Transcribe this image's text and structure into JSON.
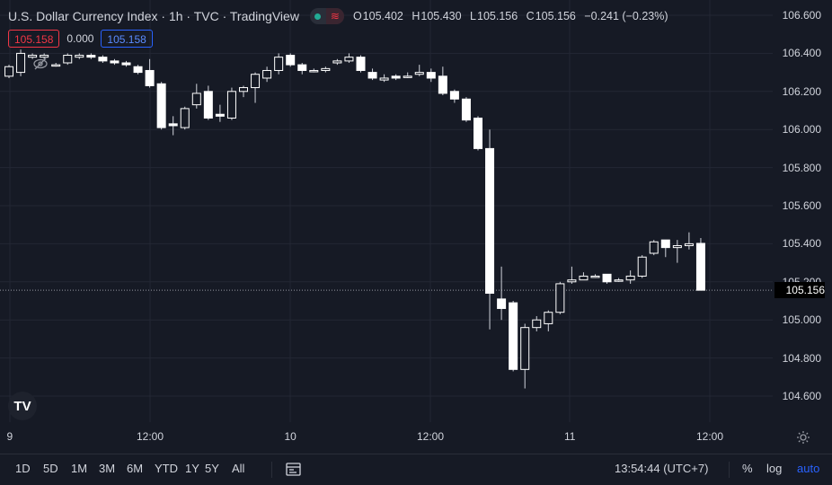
{
  "header": {
    "title": "U.S. Dollar Currency Index · 1h · TVC · TradingView",
    "ohlc": {
      "o_label": "O",
      "o": "105.402",
      "h_label": "H",
      "h": "105.430",
      "l_label": "L",
      "l": "105.156",
      "c_label": "C",
      "c": "105.156",
      "change": "−0.241 (−0.23%)"
    },
    "sell_price": "105.158",
    "spread": "0.000",
    "buy_price": "105.158"
  },
  "price_axis": {
    "labels": [
      "106.600",
      "106.400",
      "106.200",
      "106.000",
      "105.800",
      "105.600",
      "105.400",
      "105.200",
      "105.000",
      "104.800",
      "104.600"
    ],
    "current": "105.156"
  },
  "time_axis": {
    "labels": [
      "9",
      "12:00",
      "10",
      "12:00",
      "11",
      "12:00"
    ]
  },
  "toolbar": {
    "ranges": [
      "1D",
      "5D",
      "1M",
      "3M",
      "6M",
      "YTD",
      "1Y",
      "5Y",
      "All"
    ],
    "clock": "13:54:44 (UTC+7)",
    "percent": "%",
    "log": "log",
    "auto": "auto"
  },
  "colors": {
    "background": "#161a25",
    "grid": "#232734",
    "candle": "#ffffff",
    "sell": "#f23645",
    "buy": "#2962ff"
  },
  "chart_data": {
    "type": "candlestick",
    "title": "U.S. Dollar Currency Index · 1h · TVC · TradingView",
    "ylim": [
      104.48,
      106.7
    ],
    "grid": true,
    "candles": [
      {
        "o": 106.28,
        "h": 106.34,
        "l": 106.27,
        "c": 106.33
      },
      {
        "o": 106.3,
        "h": 106.42,
        "l": 106.28,
        "c": 106.4
      },
      {
        "o": 106.38,
        "h": 106.4,
        "l": 106.37,
        "c": 106.39
      },
      {
        "o": 106.38,
        "h": 106.4,
        "l": 106.37,
        "c": 106.39
      },
      {
        "o": 106.34,
        "h": 106.35,
        "l": 106.33,
        "c": 106.34
      },
      {
        "o": 106.35,
        "h": 106.4,
        "l": 106.34,
        "c": 106.39
      },
      {
        "o": 106.38,
        "h": 106.4,
        "l": 106.37,
        "c": 106.39
      },
      {
        "o": 106.39,
        "h": 106.4,
        "l": 106.37,
        "c": 106.38
      },
      {
        "o": 106.38,
        "h": 106.39,
        "l": 106.35,
        "c": 106.36
      },
      {
        "o": 106.36,
        "h": 106.37,
        "l": 106.34,
        "c": 106.35
      },
      {
        "o": 106.35,
        "h": 106.36,
        "l": 106.33,
        "c": 106.34
      },
      {
        "o": 106.33,
        "h": 106.34,
        "l": 106.29,
        "c": 106.3
      },
      {
        "o": 106.31,
        "h": 106.37,
        "l": 106.22,
        "c": 106.23
      },
      {
        "o": 106.24,
        "h": 106.25,
        "l": 106.0,
        "c": 106.01
      },
      {
        "o": 106.03,
        "h": 106.07,
        "l": 105.97,
        "c": 106.02
      },
      {
        "o": 106.01,
        "h": 106.12,
        "l": 106.0,
        "c": 106.11
      },
      {
        "o": 106.13,
        "h": 106.24,
        "l": 106.11,
        "c": 106.19
      },
      {
        "o": 106.2,
        "h": 106.23,
        "l": 106.05,
        "c": 106.06
      },
      {
        "o": 106.08,
        "h": 106.13,
        "l": 106.04,
        "c": 106.07
      },
      {
        "o": 106.06,
        "h": 106.22,
        "l": 106.05,
        "c": 106.2
      },
      {
        "o": 106.2,
        "h": 106.23,
        "l": 106.17,
        "c": 106.22
      },
      {
        "o": 106.22,
        "h": 106.3,
        "l": 106.14,
        "c": 106.29
      },
      {
        "o": 106.27,
        "h": 106.33,
        "l": 106.25,
        "c": 106.31
      },
      {
        "o": 106.31,
        "h": 106.4,
        "l": 106.29,
        "c": 106.38
      },
      {
        "o": 106.39,
        "h": 106.4,
        "l": 106.33,
        "c": 106.34
      },
      {
        "o": 106.34,
        "h": 106.35,
        "l": 106.29,
        "c": 106.31
      },
      {
        "o": 106.31,
        "h": 106.32,
        "l": 106.3,
        "c": 106.31
      },
      {
        "o": 106.31,
        "h": 106.33,
        "l": 106.3,
        "c": 106.32
      },
      {
        "o": 106.35,
        "h": 106.37,
        "l": 106.34,
        "c": 106.36
      },
      {
        "o": 106.36,
        "h": 106.4,
        "l": 106.35,
        "c": 106.38
      },
      {
        "o": 106.38,
        "h": 106.39,
        "l": 106.3,
        "c": 106.31
      },
      {
        "o": 106.3,
        "h": 106.32,
        "l": 106.26,
        "c": 106.27
      },
      {
        "o": 106.26,
        "h": 106.29,
        "l": 106.25,
        "c": 106.27
      },
      {
        "o": 106.28,
        "h": 106.29,
        "l": 106.26,
        "c": 106.27
      },
      {
        "o": 106.28,
        "h": 106.3,
        "l": 106.27,
        "c": 106.28
      },
      {
        "o": 106.29,
        "h": 106.34,
        "l": 106.28,
        "c": 106.3
      },
      {
        "o": 106.3,
        "h": 106.32,
        "l": 106.25,
        "c": 106.27
      },
      {
        "o": 106.28,
        "h": 106.33,
        "l": 106.18,
        "c": 106.19
      },
      {
        "o": 106.2,
        "h": 106.21,
        "l": 106.14,
        "c": 106.16
      },
      {
        "o": 106.16,
        "h": 106.17,
        "l": 106.04,
        "c": 106.05
      },
      {
        "o": 106.06,
        "h": 106.07,
        "l": 105.89,
        "c": 105.9
      },
      {
        "o": 105.9,
        "h": 106.0,
        "l": 104.95,
        "c": 105.14
      },
      {
        "o": 105.11,
        "h": 105.28,
        "l": 105.0,
        "c": 105.06
      },
      {
        "o": 105.09,
        "h": 105.1,
        "l": 104.73,
        "c": 104.74
      },
      {
        "o": 104.74,
        "h": 104.98,
        "l": 104.64,
        "c": 104.96
      },
      {
        "o": 104.96,
        "h": 105.02,
        "l": 104.94,
        "c": 105.0
      },
      {
        "o": 104.98,
        "h": 105.05,
        "l": 104.94,
        "c": 105.04
      },
      {
        "o": 105.04,
        "h": 105.2,
        "l": 105.03,
        "c": 105.19
      },
      {
        "o": 105.2,
        "h": 105.28,
        "l": 105.19,
        "c": 105.21
      },
      {
        "o": 105.21,
        "h": 105.25,
        "l": 105.21,
        "c": 105.23
      },
      {
        "o": 105.23,
        "h": 105.24,
        "l": 105.22,
        "c": 105.23
      },
      {
        "o": 105.24,
        "h": 105.24,
        "l": 105.19,
        "c": 105.2
      },
      {
        "o": 105.21,
        "h": 105.22,
        "l": 105.2,
        "c": 105.21
      },
      {
        "o": 105.21,
        "h": 105.26,
        "l": 105.19,
        "c": 105.23
      },
      {
        "o": 105.23,
        "h": 105.34,
        "l": 105.22,
        "c": 105.33
      },
      {
        "o": 105.35,
        "h": 105.42,
        "l": 105.34,
        "c": 105.41
      },
      {
        "o": 105.42,
        "h": 105.42,
        "l": 105.33,
        "c": 105.38
      },
      {
        "o": 105.38,
        "h": 105.42,
        "l": 105.3,
        "c": 105.39
      },
      {
        "o": 105.39,
        "h": 105.46,
        "l": 105.37,
        "c": 105.4
      },
      {
        "o": 105.402,
        "h": 105.43,
        "l": 105.156,
        "c": 105.156
      }
    ]
  }
}
